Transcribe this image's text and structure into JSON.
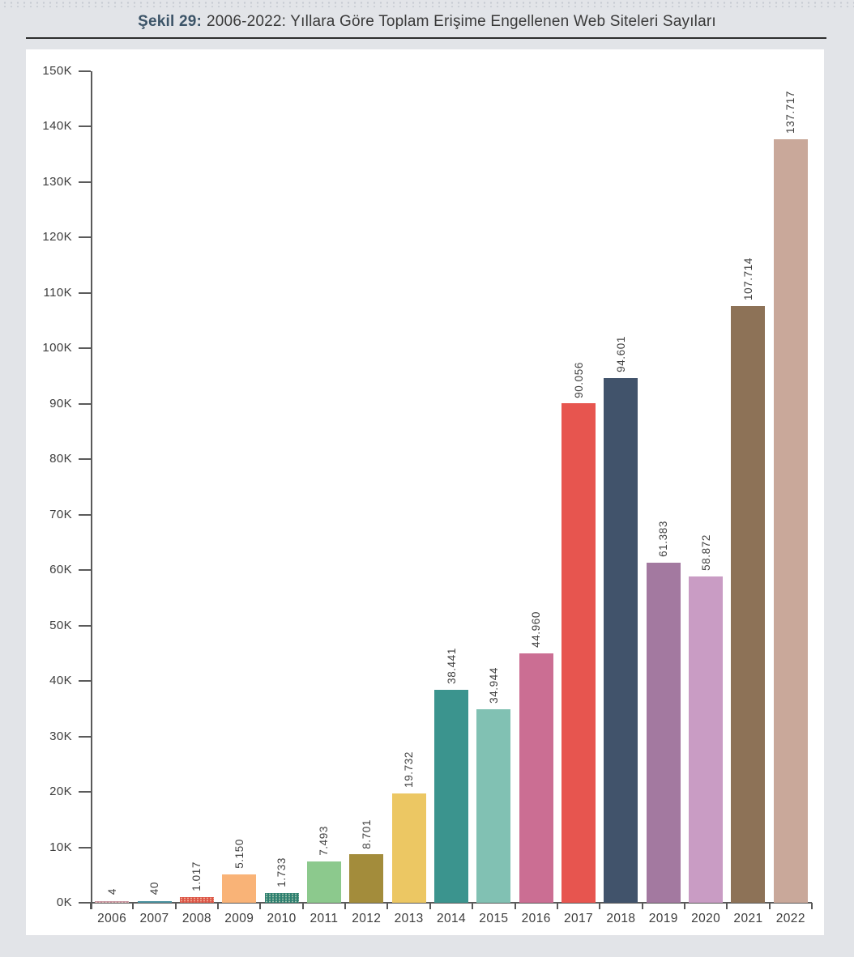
{
  "figure": {
    "label": "Şekil 29:",
    "title": "2006-2022: Yıllara Göre Toplam Erişime Engellenen Web Siteleri Sayıları"
  },
  "chart_data": {
    "type": "bar",
    "title": "2006-2022: Yıllara Göre Toplam Erişime Engellenen Web Siteleri Sayıları",
    "xlabel": "",
    "ylabel": "",
    "categories": [
      "2006",
      "2007",
      "2008",
      "2009",
      "2010",
      "2011",
      "2012",
      "2013",
      "2014",
      "2015",
      "2016",
      "2017",
      "2018",
      "2019",
      "2020",
      "2021",
      "2022"
    ],
    "values": [
      4,
      40,
      1017,
      5150,
      1733,
      7493,
      8701,
      19732,
      38441,
      34944,
      44960,
      90056,
      94601,
      61383,
      58872,
      107714,
      137717
    ],
    "value_labels": [
      "4",
      "40",
      "1.017",
      "5.150",
      "1.733",
      "7.493",
      "8.701",
      "19.732",
      "38.441",
      "34.944",
      "44.960",
      "90.056",
      "94.601",
      "61.383",
      "58.872",
      "107.714",
      "137.717"
    ],
    "bar_colors": [
      "#c793a0",
      "#4e95a2",
      "#dd5648",
      "#f9b377",
      "#2e8071",
      "#8cc98d",
      "#a38c3b",
      "#ecc763",
      "#3b948e",
      "#81c1b3",
      "#cb6e93",
      "#e7554f",
      "#41536b",
      "#a379a0",
      "#c99cc4",
      "#8d7257",
      "#c9a89a"
    ],
    "textured": [
      true,
      false,
      true,
      false,
      true,
      false,
      false,
      false,
      false,
      false,
      false,
      false,
      false,
      false,
      false,
      false,
      false
    ],
    "ylim": [
      0,
      150000
    ],
    "ytick_step": 10000,
    "ytick_suffix": "K",
    "grid": false,
    "legend": null,
    "bar_value_labels_rotated": true
  },
  "colors": {
    "page_bg": "#e2e4e8",
    "panel_bg": "#ffffff",
    "axis": "#5a5a5a",
    "figure_label": "#3c5468",
    "text": "#3a3a3a"
  }
}
